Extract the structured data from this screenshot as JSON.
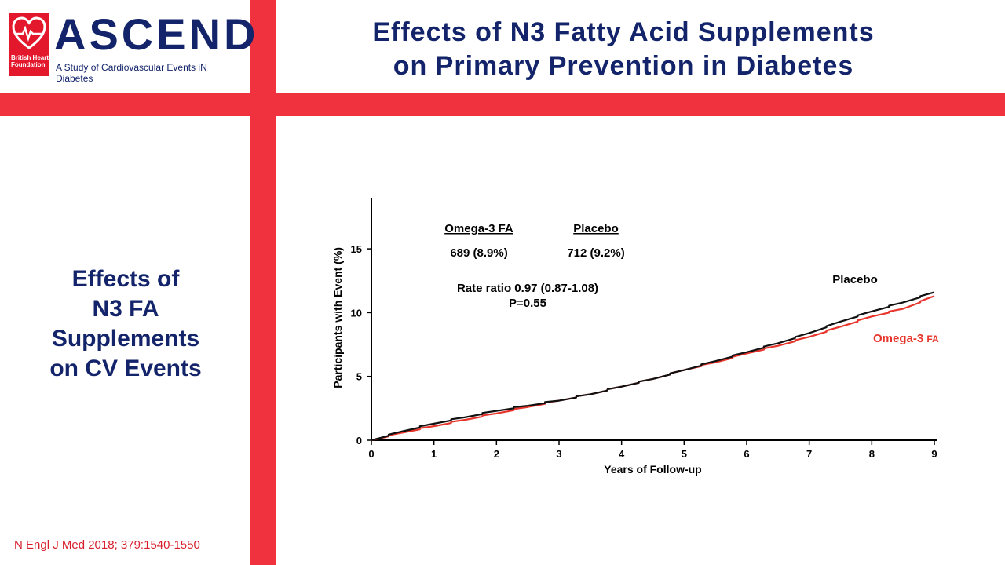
{
  "logo": {
    "name": "ASCEND",
    "tagline": "A Study of Cardiovascular Events iN Diabetes",
    "bhf": [
      "British Heart",
      "Foundation"
    ],
    "bhf_color": "#e3182d",
    "brand_color": "#13246b"
  },
  "header": {
    "title_line1": "Effects of N3 Fatty Acid Supplements",
    "title_line2": "on Primary Prevention in Diabetes"
  },
  "sidebar": {
    "lines": [
      "Effects of",
      "N3 FA",
      "Supplements",
      "on CV Events"
    ]
  },
  "citation": "N Engl J Med 2018; 379:1540-1550",
  "accent_color": "#f0323f",
  "chart_data": {
    "type": "line",
    "xlabel": "Years of Follow-up",
    "ylabel": "Participants with Event (%)",
    "xlim": [
      0,
      9
    ],
    "ylim": [
      0,
      19
    ],
    "x_ticks": [
      0,
      1,
      2,
      3,
      4,
      5,
      6,
      7,
      8,
      9
    ],
    "y_ticks": [
      0,
      5,
      10,
      15
    ],
    "grid": false,
    "series": [
      {
        "name": "Placebo",
        "color": "#111111",
        "x": [
          0,
          0.5,
          1,
          1.5,
          2,
          2.5,
          3,
          3.5,
          4,
          4.5,
          5,
          5.5,
          6,
          6.5,
          7,
          7.5,
          8,
          8.5,
          9
        ],
        "y": [
          0,
          0.7,
          1.3,
          1.8,
          2.3,
          2.7,
          3.1,
          3.6,
          4.2,
          4.8,
          5.5,
          6.2,
          6.9,
          7.6,
          8.4,
          9.3,
          10.1,
          10.8,
          11.6
        ]
      },
      {
        "name": "Omega-3 FA",
        "color": "#e8352c",
        "x": [
          0,
          0.5,
          1,
          1.5,
          2,
          2.5,
          3,
          3.5,
          4,
          4.5,
          5,
          5.5,
          6,
          6.5,
          7,
          7.5,
          8,
          8.5,
          9
        ],
        "y": [
          0,
          0.6,
          1.1,
          1.6,
          2.1,
          2.6,
          3.1,
          3.6,
          4.2,
          4.8,
          5.5,
          6.1,
          6.8,
          7.4,
          8.1,
          8.9,
          9.7,
          10.3,
          11.3
        ]
      }
    ],
    "annotations": {
      "col1_header": "Omega-3 FA",
      "col1_value": "689 (8.9%)",
      "col2_header": "Placebo",
      "col2_value": "712 (9.2%)",
      "rate_ratio": "Rate ratio 0.97 (0.87-1.08)",
      "p_value": "P=0.55"
    },
    "labels": {
      "placebo": "Placebo",
      "omega_main": "Omega-3",
      "omega_suffix": "FA"
    }
  }
}
